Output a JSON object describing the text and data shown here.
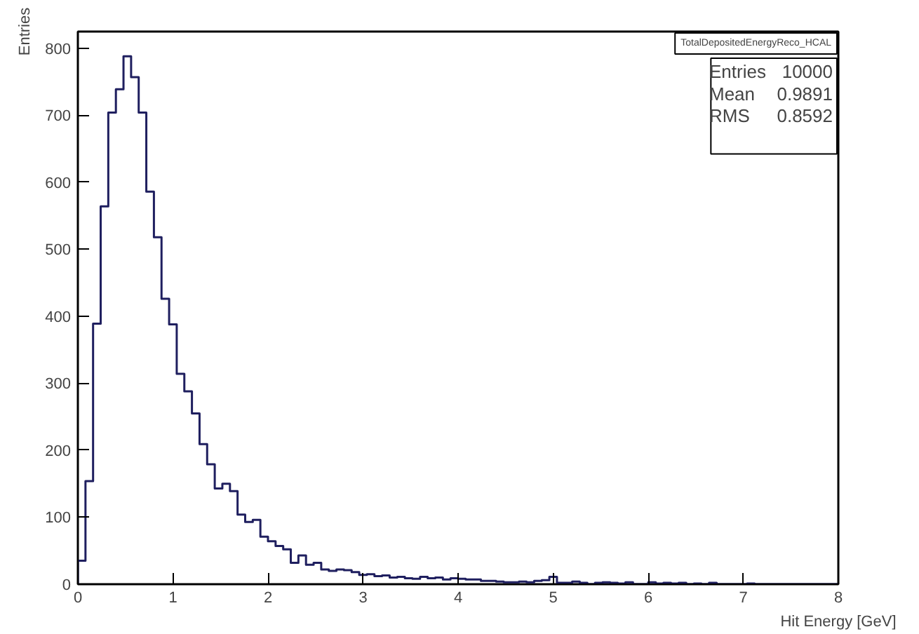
{
  "chart_data": {
    "type": "histogram",
    "xlabel": "Hit Energy [GeV]",
    "ylabel": "Entries",
    "bins": [
      0,
      0.08,
      0.16,
      0.24,
      0.32,
      0.4,
      0.48,
      0.56,
      0.64,
      0.72,
      0.8,
      0.88,
      0.96,
      1.04,
      1.12,
      1.2,
      1.28,
      1.36,
      1.44,
      1.52,
      1.6,
      1.68,
      1.76,
      1.84,
      1.92,
      2,
      2.08,
      2.16,
      2.24,
      2.32,
      2.4,
      2.48,
      2.56,
      2.64,
      2.72,
      2.8,
      2.88,
      2.96,
      3.04,
      3.12,
      3.2,
      3.28,
      3.36,
      3.44,
      3.52,
      3.6,
      3.68,
      3.76,
      3.84,
      3.92,
      4,
      4.08,
      4.16,
      4.24,
      4.32,
      4.4,
      4.48,
      4.56,
      4.64,
      4.72,
      4.8,
      4.88,
      4.96,
      5.04,
      5.12,
      5.2,
      5.28,
      5.36,
      5.44,
      5.52,
      5.6,
      5.68,
      5.76,
      5.84,
      5.92,
      6,
      6.08,
      6.16,
      6.24,
      6.32,
      6.4,
      6.48,
      6.56,
      6.64,
      6.72,
      6.8,
      6.88,
      6.96,
      7.04,
      7.12,
      7.2,
      7.28,
      7.36,
      7.44,
      7.52,
      7.6,
      7.68,
      7.76,
      7.84,
      7.92,
      8
    ],
    "values": [
      35,
      154,
      389,
      564,
      704,
      739,
      788,
      757,
      704,
      586,
      518,
      426,
      388,
      314,
      288,
      255,
      209,
      179,
      143,
      150,
      139,
      104,
      93,
      96,
      71,
      64,
      57,
      52,
      32,
      43,
      29,
      32,
      22,
      20,
      22,
      21,
      18,
      14,
      15,
      12,
      13,
      10,
      11,
      9,
      8,
      11,
      9,
      10,
      7,
      9,
      8,
      7,
      7,
      5,
      5,
      4,
      3,
      3,
      4,
      3,
      5,
      6,
      11,
      2,
      2,
      4,
      2,
      0,
      2,
      3,
      2,
      1,
      3,
      0,
      0,
      3,
      1,
      2,
      1,
      2,
      0,
      1,
      0,
      2,
      0,
      0,
      0,
      0,
      1,
      0,
      0,
      0,
      0,
      0,
      0,
      0,
      0,
      0,
      0,
      0
    ],
    "color": "#1f1f5f",
    "xlim": [
      0,
      8
    ],
    "xticks": [
      0,
      1,
      2,
      3,
      4,
      5,
      6,
      7,
      8
    ],
    "ylim": [
      0,
      825
    ],
    "yticks": [
      0,
      100,
      200,
      300,
      400,
      500,
      600,
      700,
      800
    ],
    "grid": false,
    "annotations": [
      "TotalDepositedEnergyReco_HCAL",
      "Entries",
      "10000",
      "Mean",
      "0.9891",
      "RMS",
      "0.8592"
    ]
  }
}
